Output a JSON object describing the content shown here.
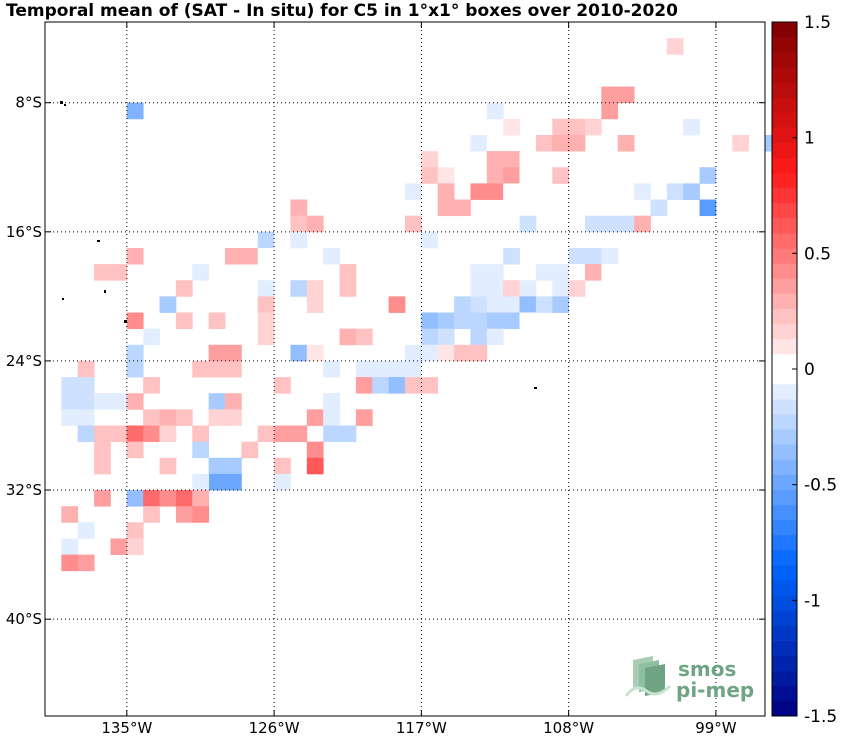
{
  "title": "Temporal mean of (SAT - In situ) for C5 in 1°x1° boxes over 2010-2020",
  "map": {
    "lon_range": [
      -140,
      -96
    ],
    "lat_range": [
      -46,
      -3
    ],
    "lon_ticks": [
      {
        "value": -135,
        "label": "135°W"
      },
      {
        "value": -126,
        "label": "126°W"
      },
      {
        "value": -117,
        "label": "117°W"
      },
      {
        "value": -108,
        "label": "108°W"
      },
      {
        "value": -99,
        "label": "99°W"
      }
    ],
    "lat_ticks": [
      {
        "value": -8,
        "label": "8°S"
      },
      {
        "value": -16,
        "label": "16°S"
      },
      {
        "value": -24,
        "label": "24°S"
      },
      {
        "value": -32,
        "label": "32°S"
      },
      {
        "value": -40,
        "label": "40°S"
      }
    ],
    "grid": true,
    "cells": [
      {
        "lon": -102,
        "lat": -5,
        "v": 0.15
      },
      {
        "lon": -106,
        "lat": -8,
        "v": 0.35
      },
      {
        "lon": -105,
        "lat": -8,
        "v": 0.35
      },
      {
        "lon": -106,
        "lat": -9,
        "v": 0.35
      },
      {
        "lon": -113,
        "lat": -9,
        "v": -0.1
      },
      {
        "lon": -135,
        "lat": -9,
        "v": -0.4
      },
      {
        "lon": -109,
        "lat": -10,
        "v": 0.25
      },
      {
        "lon": -108,
        "lat": -10,
        "v": 0.25
      },
      {
        "lon": -107,
        "lat": -10,
        "v": 0.15
      },
      {
        "lon": -112,
        "lat": -10,
        "v": 0.1
      },
      {
        "lon": -101,
        "lat": -10,
        "v": -0.1
      },
      {
        "lon": -110,
        "lat": -11,
        "v": 0.25
      },
      {
        "lon": -109,
        "lat": -11,
        "v": 0.3
      },
      {
        "lon": -108,
        "lat": -11,
        "v": 0.3
      },
      {
        "lon": -114,
        "lat": -11,
        "v": -0.1
      },
      {
        "lon": -113,
        "lat": -11,
        "v": -0.05
      },
      {
        "lon": -105,
        "lat": -11,
        "v": 0.3
      },
      {
        "lon": -102,
        "lat": -11,
        "v": -0.05
      },
      {
        "lon": -98,
        "lat": -11,
        "v": 0.15
      },
      {
        "lon": -96,
        "lat": -11,
        "v": -0.3
      },
      {
        "lon": -113,
        "lat": -12,
        "v": 0.3
      },
      {
        "lon": -112,
        "lat": -12,
        "v": 0.3
      },
      {
        "lon": -117,
        "lat": -12,
        "v": 0.15
      },
      {
        "lon": -111,
        "lat": -12,
        "v": 0.05
      },
      {
        "lon": -117,
        "lat": -13,
        "v": 0.2
      },
      {
        "lon": -116,
        "lat": -13,
        "v": 0.1
      },
      {
        "lon": -113,
        "lat": -13,
        "v": 0.3
      },
      {
        "lon": -112,
        "lat": -13,
        "v": 0.35
      },
      {
        "lon": -111,
        "lat": -13,
        "v": 0.05
      },
      {
        "lon": -109,
        "lat": -13,
        "v": 0.2
      },
      {
        "lon": -100,
        "lat": -13,
        "v": -0.3
      },
      {
        "lon": -118,
        "lat": -14,
        "v": -0.1
      },
      {
        "lon": -116,
        "lat": -14,
        "v": 0.3
      },
      {
        "lon": -114,
        "lat": -14,
        "v": 0.45
      },
      {
        "lon": -113,
        "lat": -14,
        "v": 0.45
      },
      {
        "lon": -112,
        "lat": -14,
        "v": -0.05
      },
      {
        "lon": -104,
        "lat": -14,
        "v": -0.1
      },
      {
        "lon": -102,
        "lat": -14,
        "v": -0.15
      },
      {
        "lon": -101,
        "lat": -14,
        "v": -0.3
      },
      {
        "lon": -116,
        "lat": -15,
        "v": 0.3
      },
      {
        "lon": -115,
        "lat": -15,
        "v": 0.3
      },
      {
        "lon": -125,
        "lat": -15,
        "v": 0.3
      },
      {
        "lon": -103,
        "lat": -15,
        "v": -0.15
      },
      {
        "lon": -100,
        "lat": -15,
        "v": -0.55
      },
      {
        "lon": -125,
        "lat": -16,
        "v": 0.25
      },
      {
        "lon": -124,
        "lat": -16,
        "v": 0.3
      },
      {
        "lon": -118,
        "lat": -16,
        "v": 0.2
      },
      {
        "lon": -111,
        "lat": -16,
        "v": -0.15
      },
      {
        "lon": -107,
        "lat": -16,
        "v": -0.15
      },
      {
        "lon": -106,
        "lat": -16,
        "v": -0.15
      },
      {
        "lon": -105,
        "lat": -16,
        "v": -0.15
      },
      {
        "lon": -104,
        "lat": -16,
        "v": 0.3
      },
      {
        "lon": -127,
        "lat": -17,
        "v": -0.25
      },
      {
        "lon": -126,
        "lat": -17,
        "v": -0.05
      },
      {
        "lon": -125,
        "lat": -17,
        "v": -0.1
      },
      {
        "lon": -117,
        "lat": -17,
        "v": -0.1
      },
      {
        "lon": -135,
        "lat": -18,
        "v": 0.3
      },
      {
        "lon": -129,
        "lat": -18,
        "v": 0.3
      },
      {
        "lon": -128,
        "lat": -18,
        "v": 0.3
      },
      {
        "lon": -127,
        "lat": -18,
        "v": -0.05
      },
      {
        "lon": -123,
        "lat": -18,
        "v": -0.1
      },
      {
        "lon": -112,
        "lat": -18,
        "v": -0.15
      },
      {
        "lon": -108,
        "lat": -18,
        "v": -0.15
      },
      {
        "lon": -107,
        "lat": -18,
        "v": -0.15
      },
      {
        "lon": -106,
        "lat": -18,
        "v": -0.1
      },
      {
        "lon": -137,
        "lat": -19,
        "v": 0.2
      },
      {
        "lon": -136,
        "lat": -19,
        "v": 0.2
      },
      {
        "lon": -131,
        "lat": -19,
        "v": -0.1
      },
      {
        "lon": -126,
        "lat": -19,
        "v": 0.05
      },
      {
        "lon": -122,
        "lat": -19,
        "v": 0.2
      },
      {
        "lon": -114,
        "lat": -19,
        "v": -0.1
      },
      {
        "lon": -113,
        "lat": -19,
        "v": -0.1
      },
      {
        "lon": -110,
        "lat": -19,
        "v": -0.1
      },
      {
        "lon": -109,
        "lat": -19,
        "v": -0.1
      },
      {
        "lon": -108,
        "lat": -19,
        "v": -0.05
      },
      {
        "lon": -107,
        "lat": -19,
        "v": 0.3
      },
      {
        "lon": -106,
        "lat": -19,
        "v": 0.05
      },
      {
        "lon": -132,
        "lat": -20,
        "v": 0.2
      },
      {
        "lon": -127,
        "lat": -20,
        "v": -0.1
      },
      {
        "lon": -125,
        "lat": -20,
        "v": -0.2
      },
      {
        "lon": -124,
        "lat": -20,
        "v": 0.15
      },
      {
        "lon": -122,
        "lat": -20,
        "v": 0.2
      },
      {
        "lon": -114,
        "lat": -20,
        "v": -0.1
      },
      {
        "lon": -113,
        "lat": -20,
        "v": -0.1
      },
      {
        "lon": -112,
        "lat": -20,
        "v": 0.15
      },
      {
        "lon": -111,
        "lat": -20,
        "v": -0.1
      },
      {
        "lon": -109,
        "lat": -20,
        "v": -0.1
      },
      {
        "lon": -108,
        "lat": -20,
        "v": 0.15
      },
      {
        "lon": -133,
        "lat": -21,
        "v": -0.3
      },
      {
        "lon": -127,
        "lat": -21,
        "v": 0.2
      },
      {
        "lon": -124,
        "lat": -21,
        "v": 0.15
      },
      {
        "lon": -119,
        "lat": -21,
        "v": 0.45
      },
      {
        "lon": -115,
        "lat": -21,
        "v": -0.25
      },
      {
        "lon": -114,
        "lat": -21,
        "v": -0.15
      },
      {
        "lon": -113,
        "lat": -21,
        "v": -0.1
      },
      {
        "lon": -112,
        "lat": -21,
        "v": -0.1
      },
      {
        "lon": -111,
        "lat": -21,
        "v": -0.35
      },
      {
        "lon": -110,
        "lat": -21,
        "v": -0.15
      },
      {
        "lon": -109,
        "lat": -21,
        "v": -0.3
      },
      {
        "lon": -135,
        "lat": -22,
        "v": 0.45
      },
      {
        "lon": -132,
        "lat": -22,
        "v": 0.2
      },
      {
        "lon": -130,
        "lat": -22,
        "v": 0.2
      },
      {
        "lon": -127,
        "lat": -22,
        "v": 0.15
      },
      {
        "lon": -117,
        "lat": -22,
        "v": -0.35
      },
      {
        "lon": -116,
        "lat": -22,
        "v": -0.3
      },
      {
        "lon": -115,
        "lat": -22,
        "v": -0.2
      },
      {
        "lon": -114,
        "lat": -22,
        "v": -0.25
      },
      {
        "lon": -113,
        "lat": -22,
        "v": -0.3
      },
      {
        "lon": -112,
        "lat": -22,
        "v": -0.3
      },
      {
        "lon": -111,
        "lat": -22,
        "v": -0.05
      },
      {
        "lon": -134,
        "lat": -23,
        "v": -0.1
      },
      {
        "lon": -127,
        "lat": -23,
        "v": 0.15
      },
      {
        "lon": -122,
        "lat": -23,
        "v": 0.3
      },
      {
        "lon": -121,
        "lat": -23,
        "v": 0.2
      },
      {
        "lon": -117,
        "lat": -23,
        "v": -0.25
      },
      {
        "lon": -116,
        "lat": -23,
        "v": -0.15
      },
      {
        "lon": -114,
        "lat": -23,
        "v": -0.2
      },
      {
        "lon": -113,
        "lat": -23,
        "v": -0.1
      },
      {
        "lon": -135,
        "lat": -24,
        "v": -0.2
      },
      {
        "lon": -130,
        "lat": -24,
        "v": 0.35
      },
      {
        "lon": -129,
        "lat": -24,
        "v": 0.35
      },
      {
        "lon": -125,
        "lat": -24,
        "v": -0.35
      },
      {
        "lon": -124,
        "lat": -24,
        "v": 0.1
      },
      {
        "lon": -118,
        "lat": -24,
        "v": -0.1
      },
      {
        "lon": -117,
        "lat": -24,
        "v": -0.1
      },
      {
        "lon": -116,
        "lat": -24,
        "v": 0.1
      },
      {
        "lon": -115,
        "lat": -24,
        "v": 0.2
      },
      {
        "lon": -114,
        "lat": -24,
        "v": 0.2
      },
      {
        "lon": -138,
        "lat": -25,
        "v": 0.2
      },
      {
        "lon": -135,
        "lat": -25,
        "v": -0.2
      },
      {
        "lon": -131,
        "lat": -25,
        "v": 0.2
      },
      {
        "lon": -130,
        "lat": -25,
        "v": 0.2
      },
      {
        "lon": -129,
        "lat": -25,
        "v": 0.2
      },
      {
        "lon": -123,
        "lat": -25,
        "v": -0.1
      },
      {
        "lon": -121,
        "lat": -25,
        "v": -0.1
      },
      {
        "lon": -120,
        "lat": -25,
        "v": -0.1
      },
      {
        "lon": -119,
        "lat": -25,
        "v": -0.1
      },
      {
        "lon": -118,
        "lat": -25,
        "v": -0.1
      },
      {
        "lon": -139,
        "lat": -26,
        "v": -0.15
      },
      {
        "lon": -138,
        "lat": -26,
        "v": -0.15
      },
      {
        "lon": -134,
        "lat": -26,
        "v": 0.2
      },
      {
        "lon": -126,
        "lat": -26,
        "v": 0.2
      },
      {
        "lon": -121,
        "lat": -26,
        "v": 0.35
      },
      {
        "lon": -120,
        "lat": -26,
        "v": -0.25
      },
      {
        "lon": -119,
        "lat": -26,
        "v": -0.35
      },
      {
        "lon": -118,
        "lat": -26,
        "v": 0.2
      },
      {
        "lon": -117,
        "lat": -26,
        "v": 0.2
      },
      {
        "lon": -139,
        "lat": -27,
        "v": -0.15
      },
      {
        "lon": -138,
        "lat": -27,
        "v": -0.15
      },
      {
        "lon": -137,
        "lat": -27,
        "v": -0.1
      },
      {
        "lon": -136,
        "lat": -27,
        "v": -0.1
      },
      {
        "lon": -135,
        "lat": -27,
        "v": 0.3
      },
      {
        "lon": -130,
        "lat": -27,
        "v": -0.3
      },
      {
        "lon": -129,
        "lat": -27,
        "v": 0.3
      },
      {
        "lon": -123,
        "lat": -27,
        "v": -0.1
      },
      {
        "lon": -139,
        "lat": -28,
        "v": -0.1
      },
      {
        "lon": -138,
        "lat": -28,
        "v": -0.1
      },
      {
        "lon": -134,
        "lat": -28,
        "v": 0.2
      },
      {
        "lon": -133,
        "lat": -28,
        "v": 0.3
      },
      {
        "lon": -132,
        "lat": -28,
        "v": 0.2
      },
      {
        "lon": -130,
        "lat": -28,
        "v": 0.15
      },
      {
        "lon": -129,
        "lat": -28,
        "v": 0.15
      },
      {
        "lon": -124,
        "lat": -28,
        "v": 0.35
      },
      {
        "lon": -123,
        "lat": -28,
        "v": -0.1
      },
      {
        "lon": -121,
        "lat": -28,
        "v": 0.35
      },
      {
        "lon": -138,
        "lat": -29,
        "v": -0.2
      },
      {
        "lon": -137,
        "lat": -29,
        "v": 0.25
      },
      {
        "lon": -136,
        "lat": -29,
        "v": 0.25
      },
      {
        "lon": -135,
        "lat": -29,
        "v": 0.55
      },
      {
        "lon": -134,
        "lat": -29,
        "v": 0.45
      },
      {
        "lon": -133,
        "lat": -29,
        "v": 0.15
      },
      {
        "lon": -131,
        "lat": -29,
        "v": 0.25
      },
      {
        "lon": -127,
        "lat": -29,
        "v": 0.25
      },
      {
        "lon": -126,
        "lat": -29,
        "v": 0.35
      },
      {
        "lon": -125,
        "lat": -29,
        "v": 0.35
      },
      {
        "lon": -123,
        "lat": -29,
        "v": -0.2
      },
      {
        "lon": -122,
        "lat": -29,
        "v": -0.2
      },
      {
        "lon": -137,
        "lat": -30,
        "v": 0.2
      },
      {
        "lon": -135,
        "lat": -30,
        "v": 0.2
      },
      {
        "lon": -131,
        "lat": -30,
        "v": -0.25
      },
      {
        "lon": -128,
        "lat": -30,
        "v": 0.2
      },
      {
        "lon": -124,
        "lat": -30,
        "v": 0.45
      },
      {
        "lon": -137,
        "lat": -31,
        "v": 0.2
      },
      {
        "lon": -133,
        "lat": -31,
        "v": 0.2
      },
      {
        "lon": -130,
        "lat": -31,
        "v": -0.3
      },
      {
        "lon": -129,
        "lat": -31,
        "v": -0.3
      },
      {
        "lon": -126,
        "lat": -31,
        "v": 0.2
      },
      {
        "lon": -124,
        "lat": -31,
        "v": 0.65
      },
      {
        "lon": -130,
        "lat": -32,
        "v": -0.5
      },
      {
        "lon": -129,
        "lat": -32,
        "v": -0.5
      },
      {
        "lon": -131,
        "lat": -32,
        "v": -0.1
      },
      {
        "lon": -126,
        "lat": -32,
        "v": -0.1
      },
      {
        "lon": -137,
        "lat": -33,
        "v": 0.35
      },
      {
        "lon": -135,
        "lat": -33,
        "v": -0.35
      },
      {
        "lon": -134,
        "lat": -33,
        "v": 0.55
      },
      {
        "lon": -133,
        "lat": -33,
        "v": 0.45
      },
      {
        "lon": -132,
        "lat": -33,
        "v": 0.55
      },
      {
        "lon": -131,
        "lat": -33,
        "v": 0.3
      },
      {
        "lon": -139,
        "lat": -34,
        "v": 0.3
      },
      {
        "lon": -134,
        "lat": -34,
        "v": 0.2
      },
      {
        "lon": -132,
        "lat": -34,
        "v": 0.35
      },
      {
        "lon": -131,
        "lat": -34,
        "v": 0.45
      },
      {
        "lon": -138,
        "lat": -35,
        "v": -0.1
      },
      {
        "lon": -135,
        "lat": -35,
        "v": 0.2
      },
      {
        "lon": -139,
        "lat": -36,
        "v": -0.1
      },
      {
        "lon": -136,
        "lat": -36,
        "v": 0.35
      },
      {
        "lon": -135,
        "lat": -36,
        "v": 0.15
      },
      {
        "lon": -139,
        "lat": -37,
        "v": 0.45
      },
      {
        "lon": -138,
        "lat": -37,
        "v": 0.35
      }
    ]
  },
  "colorbar": {
    "vmin": -1.5,
    "vmax": 1.5,
    "n_levels": 46,
    "ticks": [
      {
        "value": 1.5,
        "label": "1.5"
      },
      {
        "value": 1,
        "label": "1"
      },
      {
        "value": 0.5,
        "label": "0.5"
      },
      {
        "value": 0,
        "label": "0"
      },
      {
        "value": -0.5,
        "label": "-0.5"
      },
      {
        "value": -1,
        "label": "-1"
      },
      {
        "value": -1.5,
        "label": "-1.5"
      }
    ],
    "colors": {
      "deep_blue": "#000080",
      "blue": "#0066ff",
      "white": "#ffffff",
      "red": "#ff1a1a",
      "deep_red": "#800000"
    }
  },
  "logo": {
    "line1": "smos",
    "line2": "pi-mep",
    "color": "#6fa582"
  }
}
